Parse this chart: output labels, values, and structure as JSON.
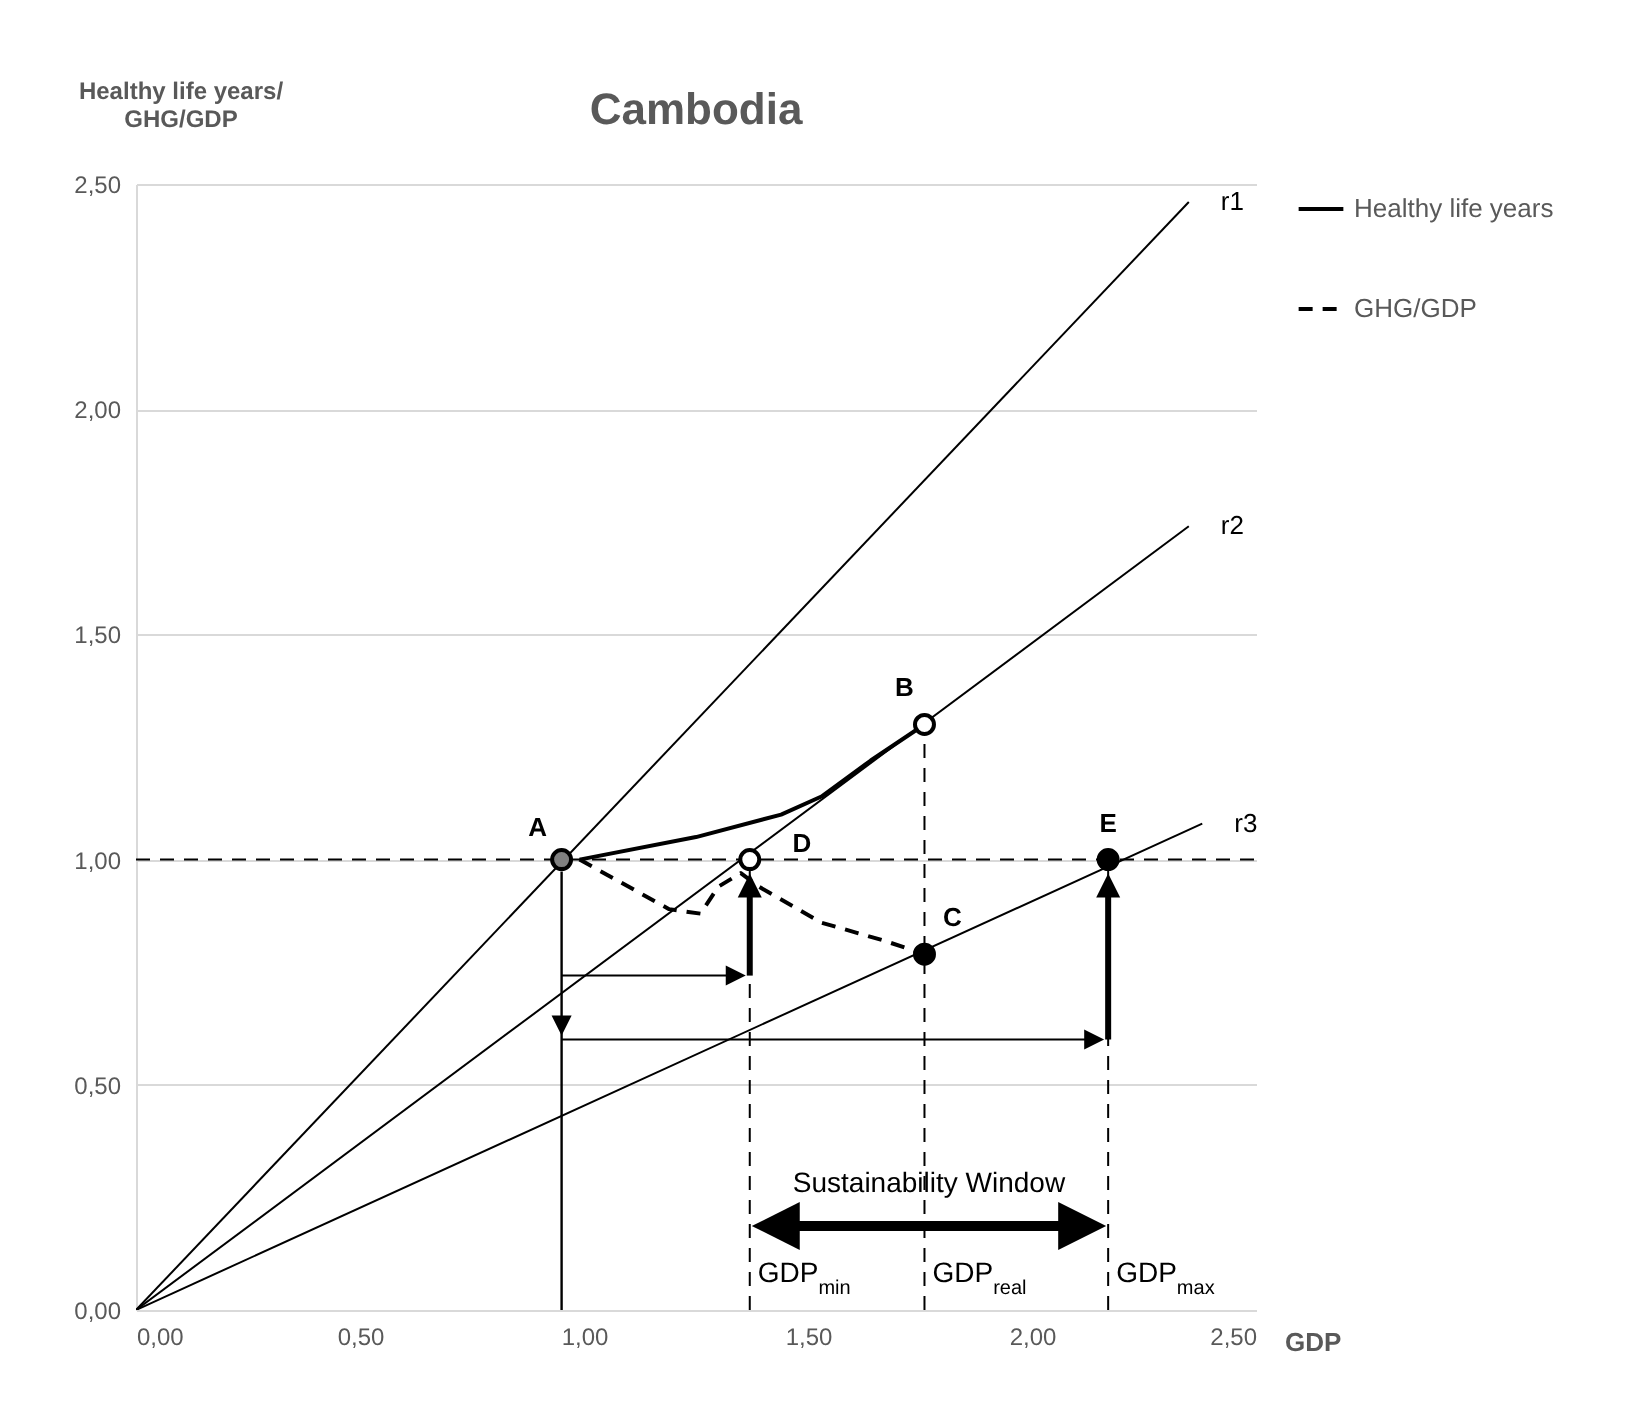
{
  "chart_data": {
    "type": "line",
    "title": "Cambodia",
    "xlabel": "GDP",
    "ylabel": "Healthy life years/\nGHG/GDP",
    "xlim": [
      0,
      2.5
    ],
    "ylim": [
      0,
      2.5
    ],
    "xticks": [
      {
        "value": 0,
        "label": "0,00"
      },
      {
        "value": 0.5,
        "label": "0,50"
      },
      {
        "value": 1,
        "label": "1,00"
      },
      {
        "value": 1.5,
        "label": "1,50"
      },
      {
        "value": 2,
        "label": "2,00"
      },
      {
        "value": 2.5,
        "label": "2,50"
      }
    ],
    "yticks": [
      {
        "value": 0,
        "label": "0,00"
      },
      {
        "value": 0.5,
        "label": "0,50"
      },
      {
        "value": 1,
        "label": "1,00"
      },
      {
        "value": 1.5,
        "label": "1,50"
      },
      {
        "value": 2,
        "label": "2,00"
      },
      {
        "value": 2.5,
        "label": "2,50"
      }
    ],
    "grid": "y",
    "legend": "right",
    "series": [
      {
        "name": "r1",
        "color": "#000000",
        "x": [
          0,
          2.35
        ],
        "values": [
          0,
          2.46
        ]
      },
      {
        "name": "r2",
        "color": "#000000",
        "x": [
          0,
          2.35
        ],
        "values": [
          0,
          1.74
        ]
      },
      {
        "name": "r3",
        "color": "#000000",
        "x": [
          0,
          2.38
        ],
        "values": [
          0,
          1.08
        ]
      },
      {
        "name": "Healthy life years",
        "color": "#000000",
        "line_style": "solid",
        "x": [
          0.99,
          1.25,
          1.44,
          1.53,
          1.64,
          1.76
        ],
        "values": [
          1.0,
          1.05,
          1.1,
          1.14,
          1.22,
          1.3
        ]
      },
      {
        "name": "GHG/GDP",
        "color": "#000000",
        "line_style": "dashed",
        "x": [
          0.99,
          1.19,
          1.26,
          1.3,
          1.35,
          1.39,
          1.53,
          1.67,
          1.76
        ],
        "values": [
          1.0,
          0.89,
          0.88,
          0.94,
          0.97,
          0.94,
          0.86,
          0.82,
          0.79
        ]
      },
      {
        "type": "scatter",
        "marker": "circle",
        "x": [
          0.95,
          1.76,
          1.76,
          1.37,
          2.17
        ],
        "values": [
          1.0,
          1.3,
          0.79,
          1.0,
          1.0
        ],
        "colors": [
          "#808080",
          "#ffffff",
          "#000000",
          "#ffffff",
          "#000000"
        ]
      }
    ],
    "ref_lines": [
      {
        "axis": "y",
        "value": 1.0,
        "line_style": "dashed"
      },
      {
        "axis": "x",
        "value": 1.37,
        "label": "GDP$_{min}$",
        "line_style": "dashed"
      },
      {
        "axis": "x",
        "value": 1.76,
        "label": "GDP$_{real}$",
        "line_style": "dashed"
      },
      {
        "axis": "x",
        "value": 2.17,
        "label": "GDP$_{max}$",
        "line_style": "dashed"
      }
    ],
    "annotations": [
      {
        "text": "A",
        "x": 0.95,
        "y": 1.0
      },
      {
        "text": "B",
        "x": 1.76,
        "y": 1.3
      },
      {
        "text": "C",
        "x": 1.76,
        "y": 0.79
      },
      {
        "text": "D",
        "x": 1.37,
        "y": 1.0
      },
      {
        "text": "E",
        "x": 2.17,
        "y": 1.0
      },
      {
        "text": "Sustainability Window",
        "x": 1.77,
        "y": 0.28
      }
    ]
  }
}
